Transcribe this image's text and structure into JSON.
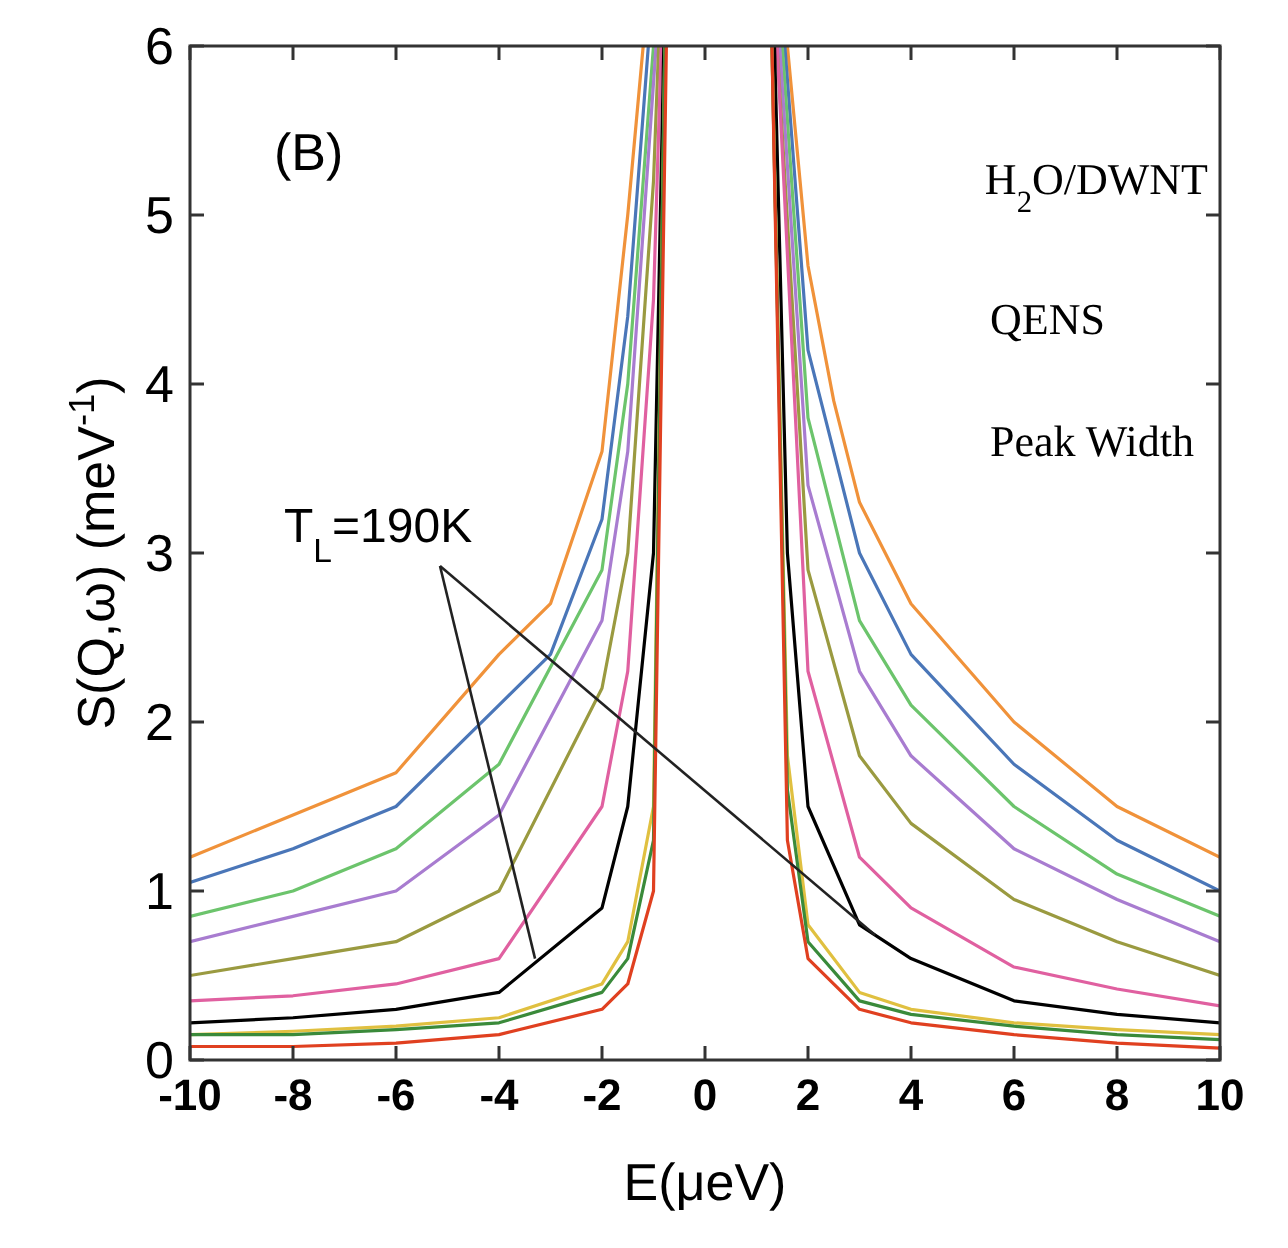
{
  "chart_data": {
    "type": "line",
    "xlabel": "E(μeV)",
    "ylabel": "S(Q,ω) (meV$^{-1}$)",
    "xlim": [
      -10,
      10
    ],
    "ylim": [
      0,
      6
    ],
    "xticks": [
      -10,
      -8,
      -6,
      -4,
      -2,
      0,
      2,
      4,
      6,
      8,
      10
    ],
    "yticks": [
      0,
      1,
      2,
      3,
      4,
      5,
      6
    ],
    "grid": false,
    "annotations": [
      "(B)",
      "H$_{2}$O/DWNT",
      "QENS",
      "Peak Width",
      {
        "text": "T$_{L}$=190K",
        "x": -3.3,
        "y": 0.6
      }
    ],
    "series": [
      {
        "color": "#f0923a",
        "x": [
          -10,
          -8,
          -6,
          -4,
          -3,
          -2,
          -1.5,
          -1.2,
          0.25,
          1.6,
          2,
          2.5,
          3,
          4,
          6,
          8,
          10
        ],
        "values": [
          1.2,
          1.45,
          1.7,
          2.4,
          2.7,
          3.6,
          5.0,
          6,
          null,
          6,
          4.7,
          3.9,
          3.3,
          2.7,
          2.0,
          1.5,
          1.2
        ]
      },
      {
        "color": "#4a76b8",
        "x": [
          -10,
          -8,
          -6,
          -4,
          -3,
          -2,
          -1.5,
          -1.1,
          0.25,
          1.55,
          2,
          3,
          4,
          6,
          8,
          10
        ],
        "values": [
          1.05,
          1.25,
          1.5,
          2.1,
          2.4,
          3.2,
          4.4,
          6,
          null,
          6,
          4.2,
          3.0,
          2.4,
          1.75,
          1.3,
          1.0
        ]
      },
      {
        "color": "#6cc46c",
        "x": [
          -10,
          -8,
          -6,
          -4,
          -2,
          -1.5,
          -1.0,
          0.25,
          1.5,
          2,
          3,
          4,
          6,
          8,
          10
        ],
        "values": [
          0.85,
          1.0,
          1.25,
          1.75,
          2.9,
          4.0,
          6,
          null,
          6,
          3.8,
          2.6,
          2.1,
          1.5,
          1.1,
          0.85
        ]
      },
      {
        "color": "#a87cd0",
        "x": [
          -10,
          -8,
          -6,
          -4,
          -2,
          -1.5,
          -0.95,
          0.25,
          1.45,
          2,
          3,
          4,
          6,
          8,
          10
        ],
        "values": [
          0.7,
          0.85,
          1.0,
          1.45,
          2.6,
          3.6,
          6,
          null,
          6,
          3.4,
          2.3,
          1.8,
          1.25,
          0.95,
          0.7
        ]
      },
      {
        "color": "#9a9a40",
        "x": [
          -10,
          -8,
          -6,
          -4,
          -2,
          -1.5,
          -1.0,
          -0.9,
          0.25,
          1.4,
          2,
          3,
          4,
          6,
          8,
          10
        ],
        "values": [
          0.5,
          0.6,
          0.7,
          1.0,
          2.2,
          3.0,
          5.2,
          6,
          null,
          6,
          2.9,
          1.8,
          1.4,
          0.95,
          0.7,
          0.5
        ]
      },
      {
        "color": "#e060a0",
        "x": [
          -10,
          -8,
          -6,
          -4,
          -2,
          -1.5,
          -1.0,
          -0.85,
          0.25,
          1.4,
          2,
          3,
          4,
          6,
          8,
          10
        ],
        "values": [
          0.35,
          0.38,
          0.45,
          0.6,
          1.5,
          2.3,
          4.5,
          6,
          null,
          6,
          2.3,
          1.2,
          0.9,
          0.55,
          0.42,
          0.32
        ]
      },
      {
        "color": "#000000",
        "x": [
          -10,
          -8,
          -6,
          -4,
          -2,
          -1.5,
          -1.0,
          -0.8,
          0.25,
          1.35,
          1.6,
          2,
          3,
          4,
          6,
          8,
          10
        ],
        "values": [
          0.22,
          0.25,
          0.3,
          0.4,
          0.9,
          1.5,
          3.0,
          6,
          null,
          6,
          3.0,
          1.5,
          0.8,
          0.6,
          0.35,
          0.27,
          0.22
        ]
      },
      {
        "color": "#e0c040",
        "x": [
          -10,
          -8,
          -6,
          -4,
          -2,
          -1.5,
          -1.0,
          -0.78,
          0.25,
          1.3,
          1.6,
          2,
          3,
          4,
          6,
          8,
          10
        ],
        "values": [
          0.15,
          0.17,
          0.2,
          0.25,
          0.45,
          0.7,
          1.5,
          6,
          null,
          6,
          1.8,
          0.8,
          0.4,
          0.3,
          0.22,
          0.18,
          0.15
        ]
      },
      {
        "color": "#3a8a3a",
        "x": [
          -10,
          -8,
          -6,
          -4,
          -2,
          -1.5,
          -1.0,
          -0.78,
          0.25,
          1.3,
          1.6,
          2,
          3,
          4,
          6,
          8,
          10
        ],
        "values": [
          0.15,
          0.15,
          0.18,
          0.22,
          0.4,
          0.6,
          1.3,
          6,
          null,
          6,
          1.6,
          0.7,
          0.35,
          0.27,
          0.2,
          0.15,
          0.12
        ]
      },
      {
        "color": "#e04020",
        "x": [
          -10,
          -8,
          -6,
          -4,
          -2,
          -1.5,
          -1.0,
          -0.75,
          0.25,
          1.3,
          1.6,
          2,
          3,
          4,
          6,
          8,
          10
        ],
        "values": [
          0.08,
          0.08,
          0.1,
          0.15,
          0.3,
          0.45,
          1.0,
          6,
          null,
          6,
          1.3,
          0.6,
          0.3,
          0.22,
          0.15,
          0.1,
          0.07
        ]
      }
    ]
  }
}
